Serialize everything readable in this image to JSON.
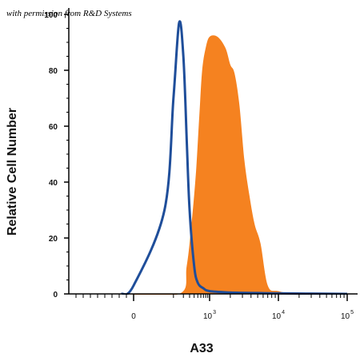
{
  "watermark": "with permission from R&D Systems",
  "chart_data": {
    "type": "area",
    "title": "",
    "xlabel": "A33",
    "ylabel": "Relative Cell Number",
    "ylim": [
      0,
      100
    ],
    "xscale": "biexponential",
    "y_ticks": [
      "0",
      "20",
      "40",
      "60",
      "80",
      "100"
    ],
    "x_ticks": [
      {
        "base": "0",
        "exp": ""
      },
      {
        "base": "10",
        "exp": "3"
      },
      {
        "base": "10",
        "exp": "4"
      },
      {
        "base": "10",
        "exp": "5"
      }
    ],
    "grid": false,
    "legend": "none",
    "colors": {
      "stained": "#F58220",
      "control": "#1F4E9A"
    },
    "series": [
      {
        "role": "isotype-control",
        "fill": false,
        "x": [
          -150,
          0,
          50,
          100,
          150,
          200,
          250,
          300,
          400,
          500,
          700,
          1000,
          2000,
          5000,
          10000,
          100000
        ],
        "values": [
          0,
          3,
          30,
          70,
          97,
          85,
          55,
          30,
          10,
          4,
          2,
          1,
          0.5,
          0.3,
          0.2,
          0
        ]
      },
      {
        "role": "stained",
        "fill": true,
        "x": [
          -150,
          150,
          250,
          350,
          450,
          550,
          650,
          800,
          1000,
          1300,
          1700,
          2000,
          2300,
          2700,
          3200,
          3800,
          4500,
          5500,
          7000,
          10000,
          20000,
          100000
        ],
        "values": [
          0,
          0,
          10,
          27,
          44,
          64,
          80,
          88,
          92,
          92,
          88,
          82,
          79,
          68,
          48,
          35,
          25,
          18,
          3,
          1,
          0,
          0
        ]
      }
    ]
  }
}
